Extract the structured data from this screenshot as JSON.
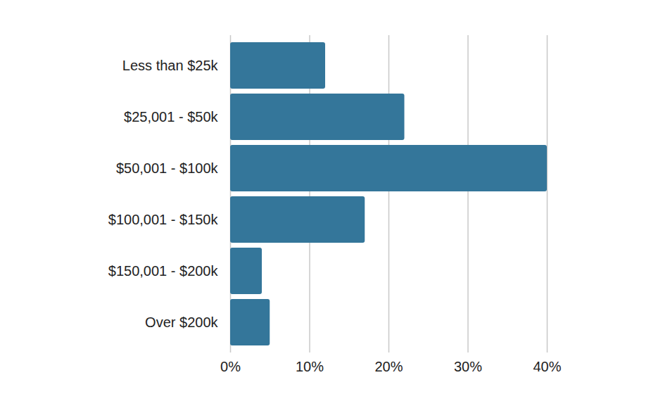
{
  "chart_data": {
    "type": "bar",
    "orientation": "horizontal",
    "categories": [
      "Less than $25k",
      "$25,001 - $50k",
      "$50,001 - $100k",
      "$100,001 - $150k",
      "$150,001 - $200k",
      "Over $200k"
    ],
    "values": [
      12,
      22,
      40,
      17,
      4,
      5
    ],
    "color": "#34769a",
    "xlim": [
      0,
      40
    ],
    "xticks": [
      {
        "value": 0,
        "label": "0%"
      },
      {
        "value": 10,
        "label": "10%"
      },
      {
        "value": 20,
        "label": "20%"
      },
      {
        "value": 30,
        "label": "30%"
      },
      {
        "value": 40,
        "label": "40%"
      }
    ],
    "grid": true
  }
}
